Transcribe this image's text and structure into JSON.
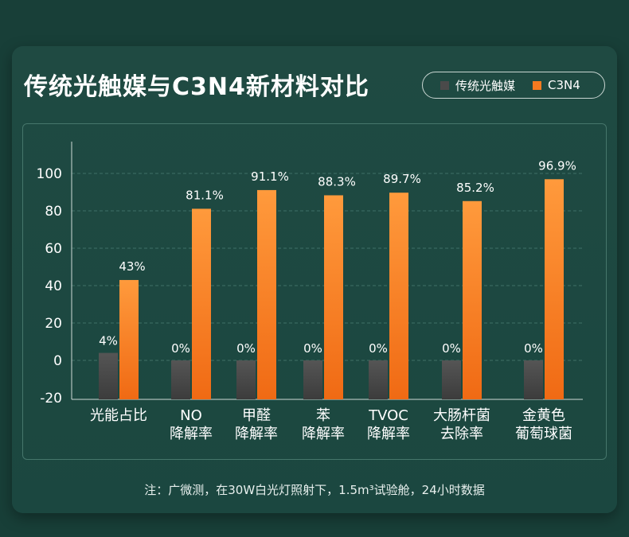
{
  "title": "传统光触媒与C3N4新材料对比",
  "legend": [
    {
      "name": "传统光触媒",
      "color": "#4a4a4a"
    },
    {
      "name": "C3N4",
      "color": "#f47a20"
    }
  ],
  "note": "注：广微测，在30W白光灯照射下，1.5m³试验舱，24小时数据",
  "chart_data": {
    "type": "bar",
    "categories": [
      "光能占比",
      "NO降解率",
      "甲醛降解率",
      "苯降解率",
      "TVOC降解率",
      "大肠杆菌去除率",
      "金黄色葡萄球菌"
    ],
    "category_lines": [
      [
        "光能占比"
      ],
      [
        "NO",
        "降解率"
      ],
      [
        "甲醛",
        "降解率"
      ],
      [
        "苯",
        "降解率"
      ],
      [
        "TVOC",
        "降解率"
      ],
      [
        "大肠杆菌",
        "去除率"
      ],
      [
        "金黄色",
        "葡萄球菌"
      ]
    ],
    "series": [
      {
        "name": "传统光触媒",
        "values": [
          4,
          0,
          0,
          0,
          0,
          0,
          0
        ],
        "labels": [
          "4%",
          "0%",
          "0%",
          "0%",
          "0%",
          "0%",
          "0%"
        ]
      },
      {
        "name": "C3N4",
        "values": [
          43,
          81.1,
          91.1,
          88.3,
          89.7,
          85.2,
          96.9
        ],
        "labels": [
          "43%",
          "81.1%",
          "91.1%",
          "88.3%",
          "89.7%",
          "85.2%",
          "96.9%"
        ]
      }
    ],
    "ylim": [
      -20,
      100
    ],
    "yticks": [
      -20,
      0,
      20,
      40,
      60,
      80,
      100
    ],
    "grid": true
  }
}
